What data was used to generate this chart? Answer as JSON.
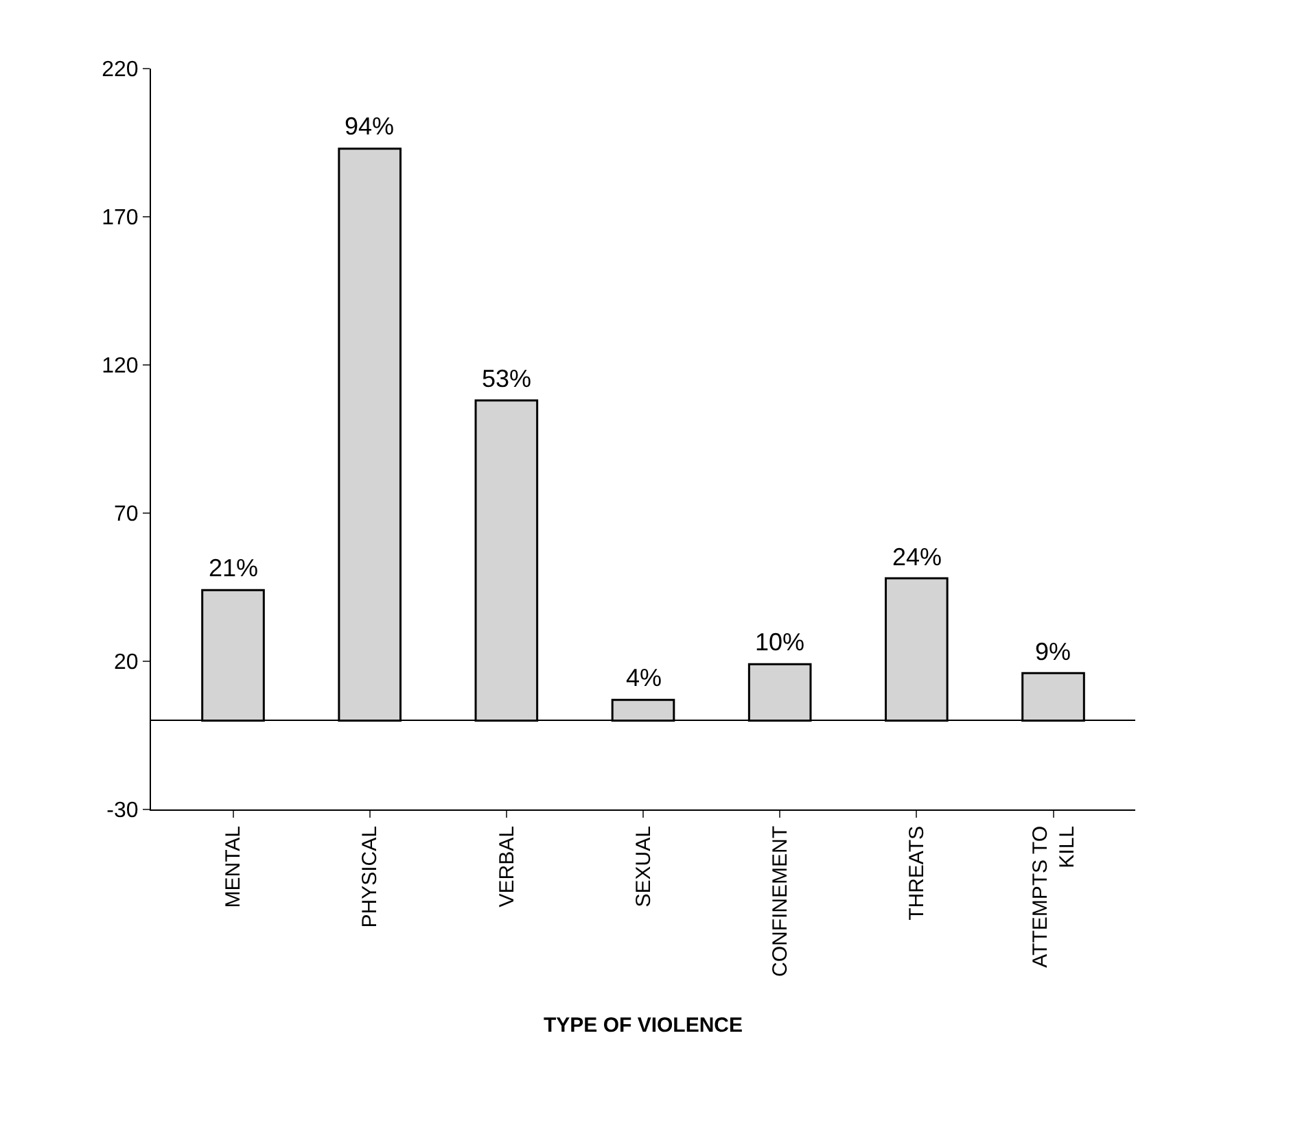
{
  "chart_data": {
    "type": "bar",
    "xlabel": "TYPE OF VIOLENCE",
    "categories": [
      "MENTAL",
      "PHYSICAL",
      "VERBAL",
      "SEXUAL",
      "CONFINEMENT",
      "THREATS",
      "ATTEMPTS TO KILL"
    ],
    "values": [
      44,
      193,
      108,
      7,
      19,
      48,
      16
    ],
    "annotations": [
      {
        "text": "21%",
        "x": "MENTAL",
        "y": 44
      },
      {
        "text": "94%",
        "x": "PHYSICAL",
        "y": 193
      },
      {
        "text": "53%",
        "x": "VERBAL",
        "y": 108
      },
      {
        "text": "4%",
        "x": "SEXUAL",
        "y": 7
      },
      {
        "text": "10%",
        "x": "CONFINEMENT",
        "y": 19
      },
      {
        "text": "24%",
        "x": "THREATS",
        "y": 48
      },
      {
        "text": "9%",
        "x": "ATTEMPTS TO KILL",
        "y": 16
      }
    ],
    "color": "#d4d4d4",
    "ylim": [
      -30,
      220
    ],
    "yticks": [
      -30,
      20,
      70,
      120,
      170,
      220
    ],
    "grid": false,
    "legend": false
  }
}
